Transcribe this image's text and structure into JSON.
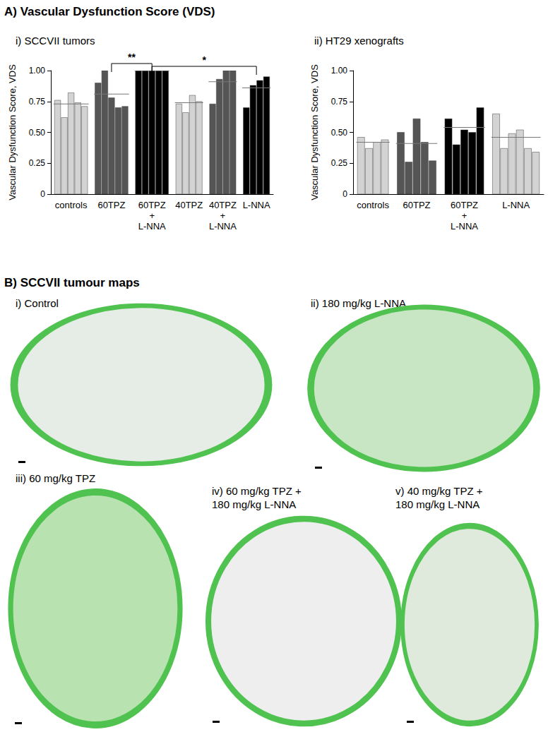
{
  "title": "A) Vascular Dysfunction Score (VDS)",
  "chart_data": [
    {
      "type": "bar",
      "subtitle": "i) SCCVII tumors",
      "y_label": "Vascular Dysfunction Score, VDS",
      "categories": [
        "controls",
        "60TPZ",
        "60TPZ + L-NNA",
        "40TPZ",
        "40TPZ + L-NNA",
        "L-NNA"
      ],
      "values": [
        [
          0.76,
          0.62,
          0.82,
          0.74,
          0.71
        ],
        [
          0.9,
          1.0,
          0.78,
          0.7,
          0.71
        ],
        [
          1.0,
          1.0,
          1.0,
          1.0,
          1.0
        ],
        [
          0.73,
          0.66,
          0.8,
          0.75
        ],
        [
          0.73,
          0.93,
          1.0,
          1.0
        ],
        [
          0.7,
          0.88,
          0.92,
          0.95
        ]
      ],
      "means": [
        0.73,
        0.81,
        1.0,
        0.74,
        0.91,
        0.86
      ],
      "colors": [
        "#d3d3d3",
        "#555555",
        "#000000",
        "#d3d3d3",
        "#555555",
        "#000000"
      ],
      "significance": [
        {
          "from": "60TPZ",
          "to": "60TPZ + L-NNA",
          "label": "**"
        },
        {
          "from": "60TPZ + L-NNA",
          "to": "L-NNA",
          "label": "*"
        }
      ],
      "ylim": [
        0,
        1
      ],
      "yticks": [
        0,
        0.25,
        {
          "value": 0.5,
          "label": "0.50"
        },
        0.75,
        {
          "value": 1,
          "label": "1.00"
        }
      ],
      "grid": false
    },
    {
      "type": "bar",
      "subtitle": "ii) HT29 xenografts",
      "y_label": "Vascular Dysfunction Score, VDS",
      "categories": [
        "controls",
        "60TPZ",
        "60TPZ + L-NNA",
        "L-NNA"
      ],
      "values": [
        [
          0.46,
          0.37,
          0.42,
          0.44
        ],
        [
          0.5,
          0.26,
          0.61,
          0.42,
          0.27
        ],
        [
          0.61,
          0.4,
          0.52,
          0.5,
          0.7
        ],
        [
          0.65,
          0.37,
          0.49,
          0.52,
          0.37,
          0.34
        ]
      ],
      "means": [
        0.42,
        0.41,
        0.54,
        0.46
      ],
      "colors": [
        "#d3d3d3",
        "#555555",
        "#000000",
        "#d3d3d3"
      ],
      "significance": [],
      "ylim": [
        0,
        1
      ],
      "yticks": [
        0,
        0.25,
        {
          "value": 0.5,
          "label": "0.50"
        },
        0.75,
        {
          "value": 1,
          "label": "1.00"
        }
      ],
      "grid": false
    }
  ],
  "maps": {
    "title": "B) SCCVII tumour maps",
    "panels": [
      [
        "i) Control"
      ],
      [
        "ii) 180 mg/kg L-NNA"
      ],
      [
        "iii) 60 mg/kg TPZ"
      ],
      [
        "iv) 60 mg/kg TPZ +",
        "180 mg/kg L-NNA"
      ],
      [
        "v) 40 mg/kg TPZ +",
        "180 mg/kg L-NNA"
      ]
    ]
  }
}
